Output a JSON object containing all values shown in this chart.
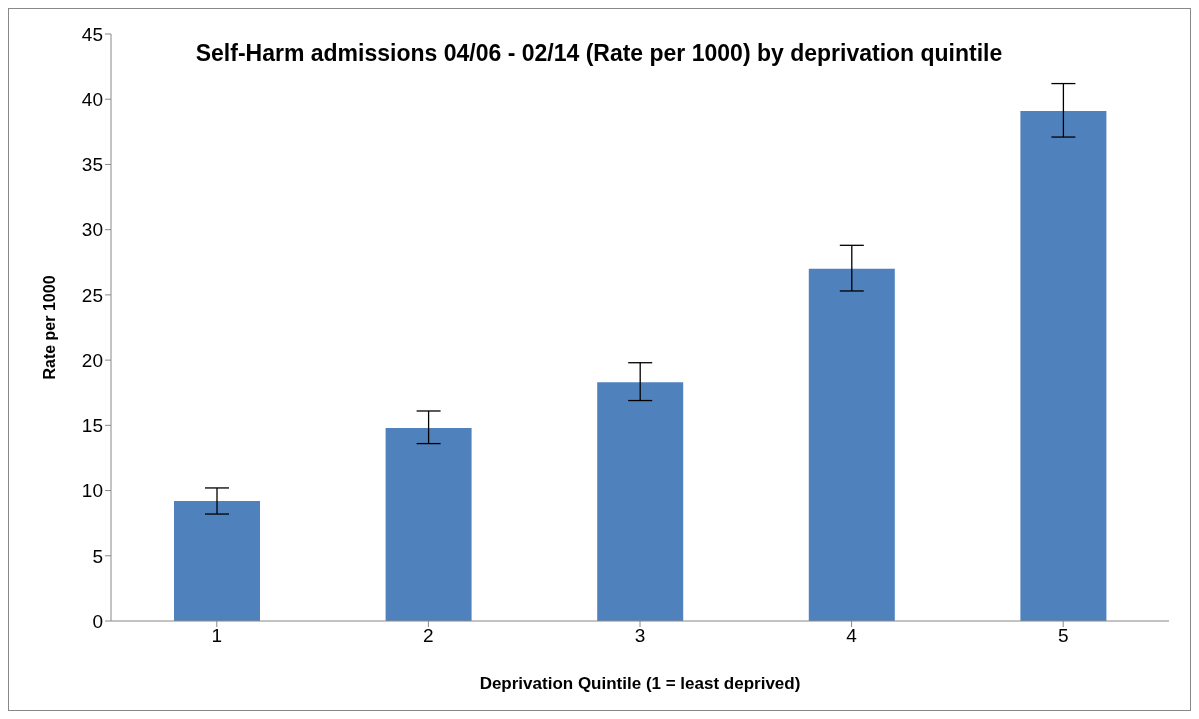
{
  "chart_data": {
    "type": "bar",
    "title": "Self-Harm admissions 04/06 - 02/14 (Rate per 1000) by deprivation quintile",
    "xlabel": "Deprivation Quintile (1 = least deprived)",
    "ylabel": "Rate per 1000",
    "categories": [
      "1",
      "2",
      "3",
      "4",
      "5"
    ],
    "values": [
      9.2,
      14.8,
      18.3,
      27.0,
      39.1
    ],
    "errors": [
      [
        8.2,
        10.2
      ],
      [
        13.6,
        16.1
      ],
      [
        16.9,
        19.8
      ],
      [
        25.3,
        28.8
      ],
      [
        37.1,
        41.2
      ]
    ],
    "color": "#4f81bd",
    "ylim": [
      0,
      45
    ],
    "yticks": [
      0,
      5,
      10,
      15,
      20,
      25,
      30,
      35,
      40,
      45
    ],
    "grid": false,
    "legend": false
  }
}
